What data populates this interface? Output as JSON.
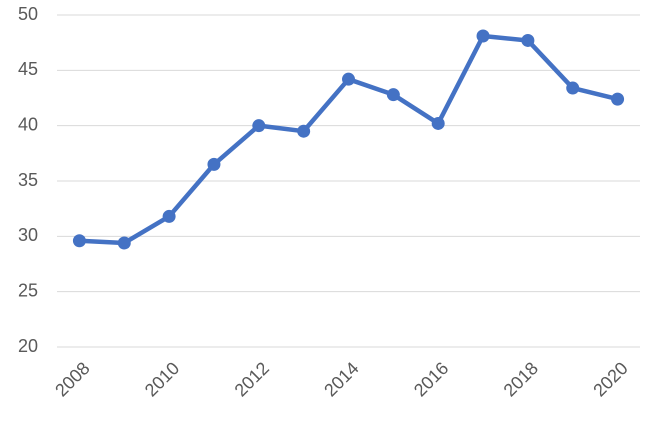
{
  "chart_data": {
    "type": "line",
    "x": [
      2008,
      2009,
      2010,
      2011,
      2012,
      2013,
      2014,
      2015,
      2016,
      2017,
      2018,
      2019,
      2020
    ],
    "series": [
      {
        "color": "#4472c4",
        "values": [
          29.6,
          29.4,
          31.8,
          36.5,
          40.0,
          39.5,
          44.2,
          42.8,
          40.2,
          48.1,
          47.7,
          43.4,
          42.4
        ]
      }
    ],
    "xlim": [
      2007.5,
      2020.5
    ],
    "xticks": [
      2008,
      2010,
      2012,
      2014,
      2016,
      2018,
      2020
    ],
    "ylim": [
      20,
      50
    ],
    "yticks": [
      20,
      25,
      30,
      35,
      40,
      45,
      50
    ],
    "grid": true
  }
}
